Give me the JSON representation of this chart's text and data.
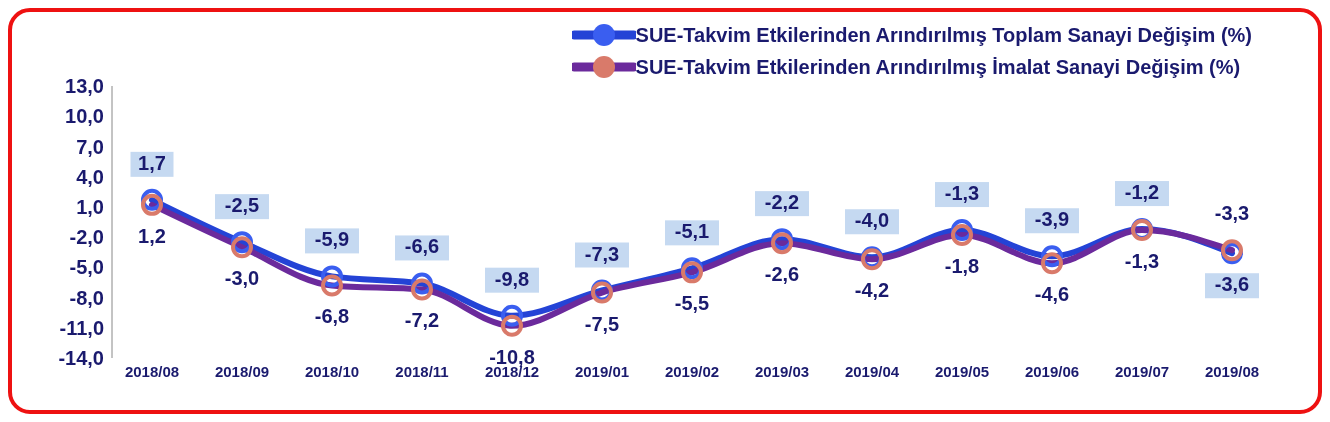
{
  "chart_data": {
    "type": "line",
    "categories": [
      "2018/08",
      "2018/09",
      "2018/10",
      "2018/11",
      "2018/12",
      "2019/01",
      "2019/02",
      "2019/03",
      "2019/04",
      "2019/05",
      "2019/06",
      "2019/07",
      "2019/08"
    ],
    "series": [
      {
        "name": "SUE-Takvim Etkilerinden Arındırılmış Toplam Sanayi Değişim (%)",
        "color": "#2443d6",
        "values": [
          1.7,
          -2.5,
          -5.9,
          -6.6,
          -9.8,
          -7.3,
          -5.1,
          -2.2,
          -4.0,
          -1.3,
          -3.9,
          -1.2,
          -3.6
        ],
        "value_labels": [
          "1,7",
          "-2,5",
          "-5,9",
          "-6,6",
          "-9,8",
          "-7,3",
          "-5,1",
          "-2,2",
          "-4,0",
          "-1,3",
          "-3,9",
          "-1,2",
          "-3,6"
        ]
      },
      {
        "name": "SUE-Takvim Etkilerinden Arındırılmış İmalat Sanayi Değişim (%)",
        "color": "#6b2a9c",
        "values": [
          1.2,
          -3.0,
          -6.8,
          -7.2,
          -10.8,
          -7.5,
          -5.5,
          -2.6,
          -4.2,
          -1.8,
          -4.6,
          -1.3,
          -3.3
        ],
        "value_labels": [
          "1,2",
          "-3,0",
          "-6,8",
          "-7,2",
          "-10,8",
          "-7,5",
          "-5,5",
          "-2,6",
          "-4,2",
          "-1,8",
          "-4,6",
          "-1,3",
          "-3,3"
        ]
      }
    ],
    "ylim": [
      -14,
      13
    ],
    "yticks": [
      {
        "value": -14,
        "label": "-14,0"
      },
      {
        "value": -11,
        "label": "-11,0"
      },
      {
        "value": -8,
        "label": "-8,0"
      },
      {
        "value": -5,
        "label": "-5,0"
      },
      {
        "value": -2,
        "label": "-2,0"
      },
      {
        "value": 1,
        "label": "1,0"
      },
      {
        "value": 4,
        "label": "4,0"
      },
      {
        "value": 7,
        "label": "7,0"
      },
      {
        "value": 10,
        "label": "10,0"
      },
      {
        "value": 13,
        "label": "13,0"
      }
    ],
    "grid": false,
    "legend": "top right",
    "marker": "circle",
    "line_style": "solid"
  }
}
